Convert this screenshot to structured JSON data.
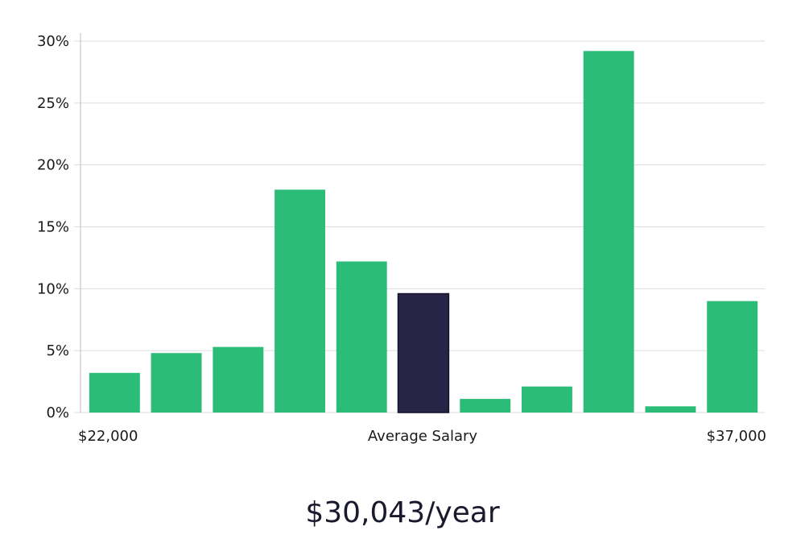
{
  "chart_data": {
    "type": "bar",
    "title": "",
    "xlabel": "Average Salary",
    "ylabel": "",
    "x_range_labels": {
      "min": "$22,000",
      "max": "$37,000"
    },
    "ylim": [
      0,
      30
    ],
    "yticks": [
      0,
      5,
      10,
      15,
      20,
      25,
      30
    ],
    "ytick_labels": [
      "0%",
      "5%",
      "10%",
      "15%",
      "20%",
      "25%",
      "30%"
    ],
    "grid": true,
    "values": [
      3.2,
      4.8,
      5.3,
      18.0,
      12.2,
      9.6,
      1.1,
      2.1,
      29.2,
      0.5,
      9.0
    ],
    "highlight_index": 5,
    "colors": {
      "bar": "#2bbd77",
      "highlight": "#272445",
      "highlight_stroke": "#15122e"
    }
  },
  "summary": {
    "salary_text": "$30,043/year"
  }
}
